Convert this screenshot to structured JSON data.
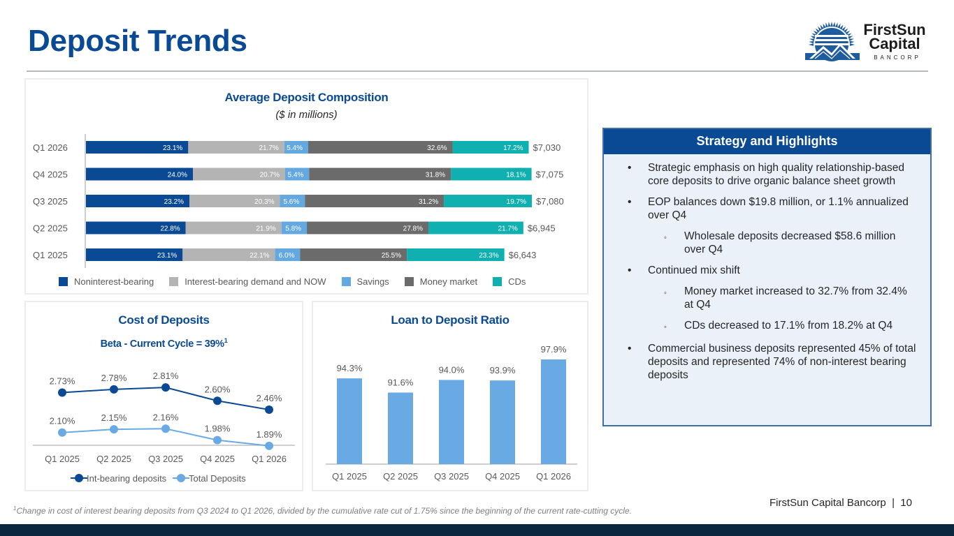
{
  "page": {
    "title": "Deposit Trends",
    "brand": {
      "line1": "FirstSun",
      "line2": "Capital",
      "line3": "BANCORP"
    },
    "footer": "FirstSun Capital Bancorp  |  10",
    "footnote_marker": "1",
    "footnote": "Change in cost of interest bearing deposits from Q3 2024 to Q1 2026, divided by the cumulative rate cut of 1.75% since the beginning of the current rate-cutting cycle."
  },
  "highlights": {
    "header": "Strategy and Highlights",
    "items": [
      {
        "level": 1,
        "text": "Strategic emphasis on high quality relationship-based core deposits to drive organic balance sheet growth"
      },
      {
        "level": 1,
        "text": "EOP balances down $19.8 million, or 1.1% annualized over Q4"
      },
      {
        "level": 2,
        "text": "Wholesale deposits decreased $58.6 million over Q4"
      },
      {
        "level": 1,
        "text": "Continued mix shift"
      },
      {
        "level": 2,
        "text": "Money market increased to 32.7% from 32.4% at Q4"
      },
      {
        "level": 2,
        "text": "CDs decreased to 17.1% from 18.2% at Q4"
      },
      {
        "level": 1,
        "text": "Commercial business deposits represented 45% of total deposits and represented 74% of non-interest bearing deposits"
      }
    ],
    "bullet_l1": "•",
    "bullet_l2": "◦"
  },
  "colors": {
    "brand_blue": "#0a4a94",
    "noninterest": "#0a4a94",
    "interest_demand": "#b4b4b4",
    "savings": "#64a8e2",
    "money_market": "#6b6b6b",
    "cds": "#10b0b0",
    "line_dark": "#0a4a94",
    "line_light": "#6aaae4",
    "ltd_bar": "#6aaae4"
  },
  "chart_data": [
    {
      "id": "composition",
      "type": "bar",
      "orientation": "horizontal",
      "stacked": true,
      "title": "Average Deposit Composition",
      "subtitle": "($ in millions)",
      "categories": [
        "Q1 2026",
        "Q4 2025",
        "Q3 2025",
        "Q2 2025",
        "Q1 2025"
      ],
      "series": [
        {
          "name": "Noninterest-bearing",
          "values": [
            23.1,
            24.0,
            23.2,
            22.8,
            23.1
          ]
        },
        {
          "name": "Interest-bearing demand and NOW",
          "values": [
            21.7,
            20.7,
            20.3,
            21.9,
            22.1
          ]
        },
        {
          "name": "Savings",
          "values": [
            5.4,
            5.4,
            5.6,
            5.8,
            6.0
          ]
        },
        {
          "name": "Money market",
          "values": [
            32.6,
            31.8,
            31.2,
            27.8,
            25.5
          ]
        },
        {
          "name": "CDs",
          "values": [
            17.2,
            18.1,
            19.7,
            21.7,
            23.3
          ]
        }
      ],
      "totals": [
        7030,
        7075,
        7080,
        6945,
        6643
      ],
      "total_labels": [
        "$7,030",
        "$7,075",
        "$7,080",
        "$6,945",
        "$6,643"
      ],
      "value_suffix": "%",
      "legend_position": "bottom"
    },
    {
      "id": "cost",
      "type": "line",
      "title": "Cost of Deposits",
      "subtitle": "Beta - Current Cycle = 39%",
      "subtitle_sup": "1",
      "categories": [
        "Q1 2025",
        "Q2 2025",
        "Q3 2025",
        "Q4 2025",
        "Q1 2026"
      ],
      "series": [
        {
          "name": "Int-bearing deposits",
          "values": [
            2.73,
            2.78,
            2.81,
            2.6,
            2.46
          ]
        },
        {
          "name": "Total Deposits",
          "values": [
            2.1,
            2.15,
            2.16,
            1.98,
            1.89
          ]
        }
      ],
      "value_suffix": "%",
      "legend_position": "bottom",
      "grid": false
    },
    {
      "id": "ltd",
      "type": "bar",
      "title": "Loan to Deposit Ratio",
      "categories": [
        "Q1 2025",
        "Q2 2025",
        "Q3 2025",
        "Q4 2025",
        "Q1 2026"
      ],
      "values": [
        94.3,
        91.6,
        94.0,
        93.9,
        97.9
      ],
      "value_suffix": "%",
      "grid": false
    }
  ]
}
